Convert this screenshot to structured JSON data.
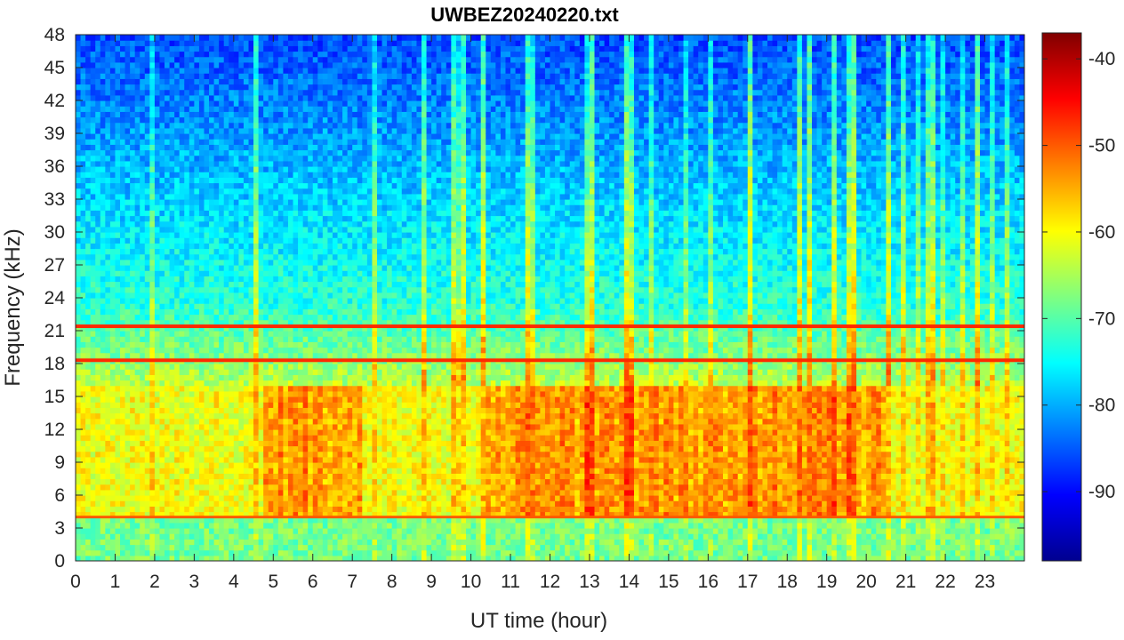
{
  "chart_data": {
    "type": "heatmap",
    "title": "UWBEZ20240220.txt",
    "xlabel": "UT time (hour)",
    "ylabel": "Frequency (kHz)",
    "xlim": [
      0,
      24
    ],
    "ylim": [
      0,
      48
    ],
    "x_ticks": [
      0,
      1,
      2,
      3,
      4,
      5,
      6,
      7,
      8,
      9,
      10,
      11,
      12,
      13,
      14,
      15,
      16,
      17,
      18,
      19,
      20,
      21,
      22,
      23
    ],
    "y_ticks": [
      0,
      3,
      6,
      9,
      12,
      15,
      18,
      21,
      24,
      27,
      30,
      33,
      36,
      39,
      42,
      45,
      48
    ],
    "colorbar": {
      "colormap": "jet",
      "clim": [
        -98,
        -37
      ],
      "ticks": [
        -90,
        -80,
        -70,
        -60,
        -50,
        -40
      ]
    },
    "grid": false,
    "features": {
      "strong_lines_khz": [
        18.3,
        21.4
      ],
      "lower_line_khz": 4.0,
      "active_band_khz": [
        4,
        16
      ],
      "active_periods_hour": [
        [
          4.7,
          7.2
        ],
        [
          10.4,
          20.5
        ]
      ],
      "background_level_db": {
        "low_freq": -68,
        "mid_band": -58,
        "high_freq": -86
      }
    }
  }
}
